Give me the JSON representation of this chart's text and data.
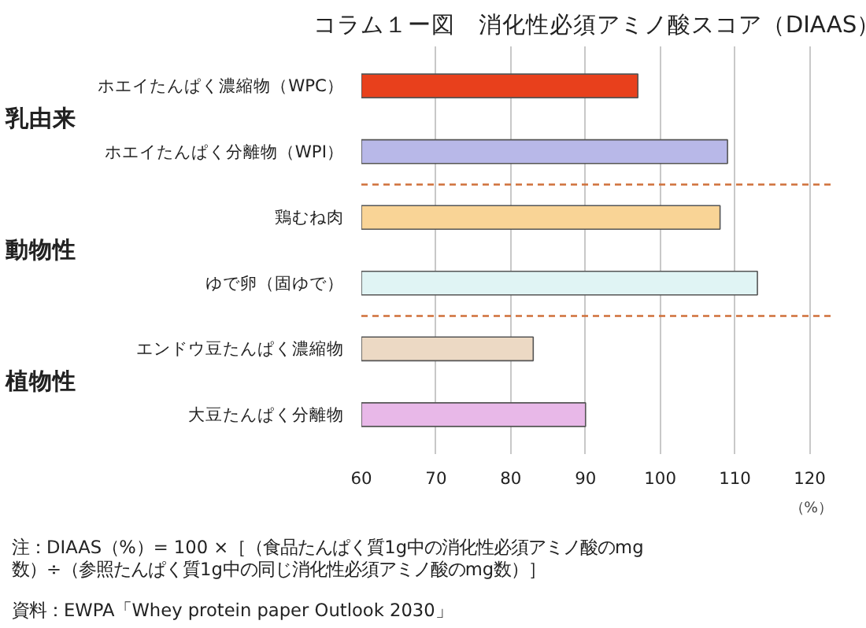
{
  "chart_data": {
    "type": "bar",
    "orientation": "horizontal",
    "title": "コラム１ー図　消化性必須アミノ酸スコア（DIAAS）",
    "categories": [
      "ホエイたんぱく濃縮物（WPC）",
      "ホエイたんぱく分離物（WPI）",
      "鶏むね肉",
      "ゆで卵（固ゆで）",
      "エンドウ豆たんぱく濃縮物",
      "大豆たんぱく分離物"
    ],
    "values": [
      97,
      109,
      108,
      113,
      83,
      90
    ],
    "colors": [
      "#e8401c",
      "#b8b8e8",
      "#f9d496",
      "#e0f4f4",
      "#ecd9c4",
      "#e8b8e8"
    ],
    "xlim": [
      60,
      123
    ],
    "xticks": [
      60,
      70,
      80,
      90,
      100,
      110,
      120
    ],
    "xlabel": "（%）",
    "grid": "x",
    "annotations": [
      "乳由来",
      "動物性",
      "植物性",
      "資料：EWPA「Whey protein paper Outlook 2030」",
      "注：DIAAS（%）= 100 ×［（食品たんぱく質1g中の消化性必須アミノ酸のmg\n数）÷（参照たんぱく質1g中の同じ消化性必須アミノ酸のmg数）］"
    ]
  }
}
